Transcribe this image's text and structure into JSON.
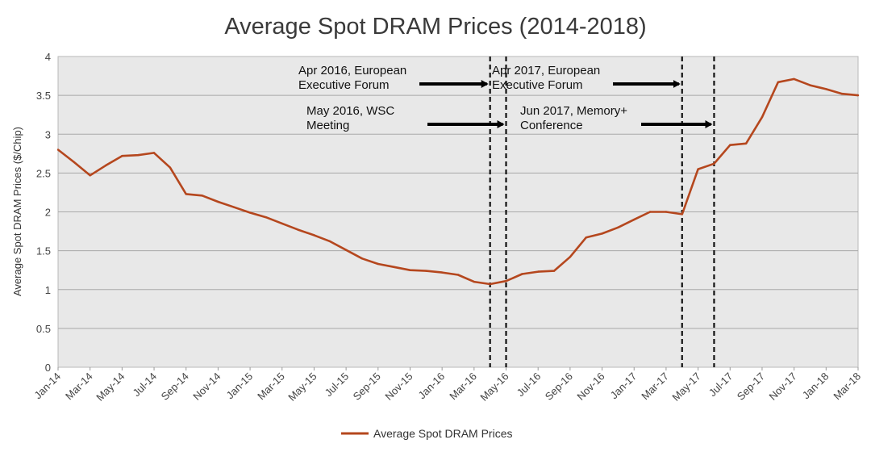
{
  "chart_data": {
    "type": "line",
    "title": "Average Spot DRAM Prices (2014-2018)",
    "xlabel": "",
    "ylabel": "Average Spot DRAM Prices ($/Chip)",
    "ylim": [
      0,
      4
    ],
    "yticks": [
      "0",
      "0.5",
      "1",
      "1.5",
      "2",
      "2.5",
      "3",
      "3.5",
      "4"
    ],
    "grid": true,
    "legend_position": "bottom",
    "series_color": "#b5471e",
    "x_tick_labels": [
      "Jan-14",
      "Mar-14",
      "May-14",
      "Jul-14",
      "Sep-14",
      "Nov-14",
      "Jan-15",
      "Mar-15",
      "May-15",
      "Jul-15",
      "Sep-15",
      "Nov-15",
      "Jan-16",
      "Mar-16",
      "May-16",
      "Jul-16",
      "Sep-16",
      "Nov-16",
      "Jan-17",
      "Mar-17",
      "May-17",
      "Jul-17",
      "Sep-17",
      "Nov-17",
      "Jan-18",
      "Mar-18"
    ],
    "series": [
      {
        "name": "Average Spot DRAM Prices",
        "values": [
          [
            "2014-01",
            2.8
          ],
          [
            "2014-02",
            2.64
          ],
          [
            "2014-03",
            2.47
          ],
          [
            "2014-04",
            2.6
          ],
          [
            "2014-05",
            2.72
          ],
          [
            "2014-06",
            2.73
          ],
          [
            "2014-07",
            2.76
          ],
          [
            "2014-08",
            2.57
          ],
          [
            "2014-09",
            2.23
          ],
          [
            "2014-10",
            2.21
          ],
          [
            "2014-11",
            2.13
          ],
          [
            "2014-12",
            2.06
          ],
          [
            "2015-01",
            1.99
          ],
          [
            "2015-02",
            1.93
          ],
          [
            "2015-03",
            1.85
          ],
          [
            "2015-04",
            1.77
          ],
          [
            "2015-05",
            1.7
          ],
          [
            "2015-06",
            1.62
          ],
          [
            "2015-07",
            1.51
          ],
          [
            "2015-08",
            1.4
          ],
          [
            "2015-09",
            1.33
          ],
          [
            "2015-10",
            1.29
          ],
          [
            "2015-11",
            1.25
          ],
          [
            "2015-12",
            1.24
          ],
          [
            "2016-01",
            1.22
          ],
          [
            "2016-02",
            1.19
          ],
          [
            "2016-03",
            1.1
          ],
          [
            "2016-04",
            1.07
          ],
          [
            "2016-05",
            1.11
          ],
          [
            "2016-06",
            1.2
          ],
          [
            "2016-07",
            1.23
          ],
          [
            "2016-08",
            1.24
          ],
          [
            "2016-09",
            1.42
          ],
          [
            "2016-10",
            1.67
          ],
          [
            "2016-11",
            1.72
          ],
          [
            "2016-12",
            1.8
          ],
          [
            "2017-01",
            1.9
          ],
          [
            "2017-02",
            2.0
          ],
          [
            "2017-03",
            2.0
          ],
          [
            "2017-04",
            1.97
          ],
          [
            "2017-05",
            2.55
          ],
          [
            "2017-06",
            2.62
          ],
          [
            "2017-07",
            2.86
          ],
          [
            "2017-08",
            2.88
          ],
          [
            "2017-09",
            3.22
          ],
          [
            "2017-10",
            3.67
          ],
          [
            "2017-11",
            3.71
          ],
          [
            "2017-12",
            3.63
          ],
          [
            "2018-01",
            3.58
          ],
          [
            "2018-02",
            3.52
          ],
          [
            "2018-03",
            3.5
          ]
        ]
      }
    ],
    "events": [
      {
        "date": "2016-04",
        "label_line1": "Apr 2016, European",
        "label_line2": "Executive Forum"
      },
      {
        "date": "2016-05",
        "label_line1": "May 2016, WSC",
        "label_line2": "Meeting"
      },
      {
        "date": "2017-04",
        "label_line1": "Apr 2017, European",
        "label_line2": "Executive Forum"
      },
      {
        "date": "2017-06",
        "label_line1": "Jun 2017, Memory+",
        "label_line2": "Conference"
      }
    ]
  }
}
